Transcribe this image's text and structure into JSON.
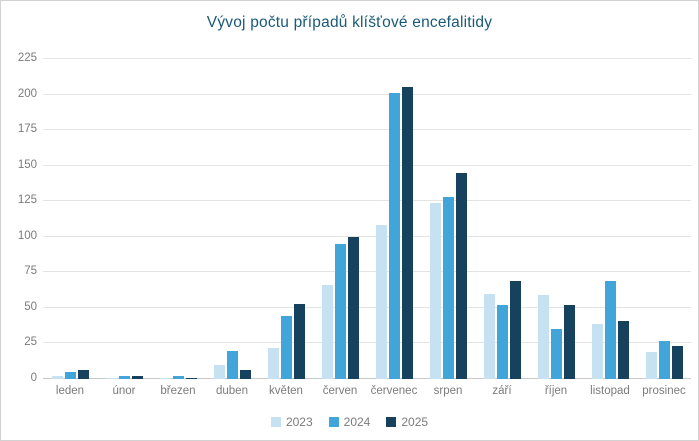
{
  "chart_data": {
    "type": "bar",
    "title": "Vývoj počtu případů klíšťové encefalitidy",
    "categories": [
      "leden",
      "únor",
      "březen",
      "duben",
      "květen",
      "červen",
      "červenec",
      "srpen",
      "září",
      "říjen",
      "listopad",
      "prosinec"
    ],
    "series": [
      {
        "name": "2023",
        "color": "#c6e2f2",
        "values": [
          2,
          1,
          1,
          10,
          22,
          66,
          108,
          124,
          60,
          59,
          39,
          19
        ]
      },
      {
        "name": "2024",
        "color": "#41a5d9",
        "values": [
          5,
          2,
          2,
          20,
          44,
          95,
          201,
          128,
          52,
          35,
          69,
          27
        ]
      },
      {
        "name": "2025",
        "color": "#17425e",
        "values": [
          6,
          2,
          1,
          6,
          53,
          100,
          205,
          145,
          69,
          52,
          41,
          23
        ]
      }
    ],
    "xlabel": "",
    "ylabel": "",
    "ylim": [
      0,
      225
    ],
    "yticks": [
      0,
      25,
      50,
      75,
      100,
      125,
      150,
      175,
      200,
      225
    ],
    "grid": true,
    "legend_position": "bottom"
  },
  "colors": {
    "title": "#1a5a78",
    "axis_text": "#7b7b7b",
    "gridline": "#e4e4e4",
    "zero_line": "#c9c9c9",
    "background": "#ffffff"
  }
}
